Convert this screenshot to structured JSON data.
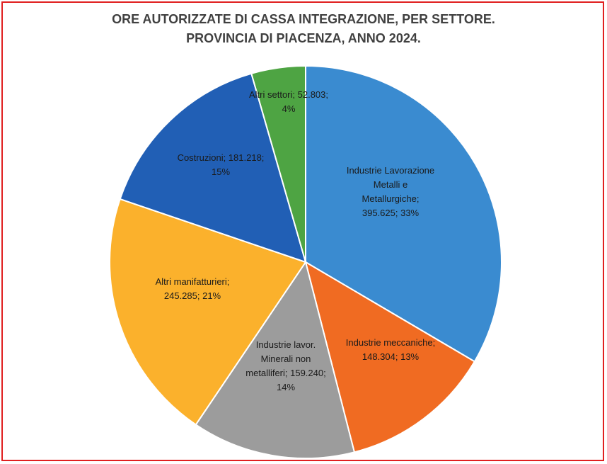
{
  "chart_data": {
    "type": "pie",
    "title_lines": [
      "ORE AUTORIZZATE DI CASSA INTEGRAZIONE, PER SETTORE.",
      "PROVINCIA DI PIACENZA, ANNO 2024."
    ],
    "slices": [
      {
        "category": "Industrie Lavorazione Metalli e Metallurgiche",
        "value": 395625,
        "percent": 33,
        "color": "#3a8bd0",
        "label_lines": [
          "Industrie Lavorazione",
          "Metalli e",
          "Metallurgiche;",
          "395.625; 33%"
        ]
      },
      {
        "category": "Industrie meccaniche",
        "value": 148304,
        "percent": 13,
        "color": "#f06b22",
        "label_lines": [
          "Industrie meccaniche;",
          "148.304; 13%"
        ]
      },
      {
        "category": "Industrie lavor. Minerali non metalliferi",
        "value": 159240,
        "percent": 14,
        "color": "#9c9c9c",
        "label_lines": [
          "Industrie lavor.",
          "Minerali non",
          "metalliferi; 159.240;",
          "14%"
        ]
      },
      {
        "category": "Altri manifatturieri",
        "value": 245285,
        "percent": 21,
        "color": "#fbb12c",
        "label_lines": [
          "Altri manifatturieri;",
          "245.285; 21%"
        ]
      },
      {
        "category": "Costruzioni",
        "value": 181218,
        "percent": 15,
        "color": "#215fb5",
        "label_lines": [
          "Costruzioni; 181.218;",
          "15%"
        ]
      },
      {
        "category": "Altri settori",
        "value": 52803,
        "percent": 4,
        "color": "#4ea443",
        "label_lines": [
          "Altri settori; 52.803;",
          "4%"
        ]
      }
    ]
  }
}
